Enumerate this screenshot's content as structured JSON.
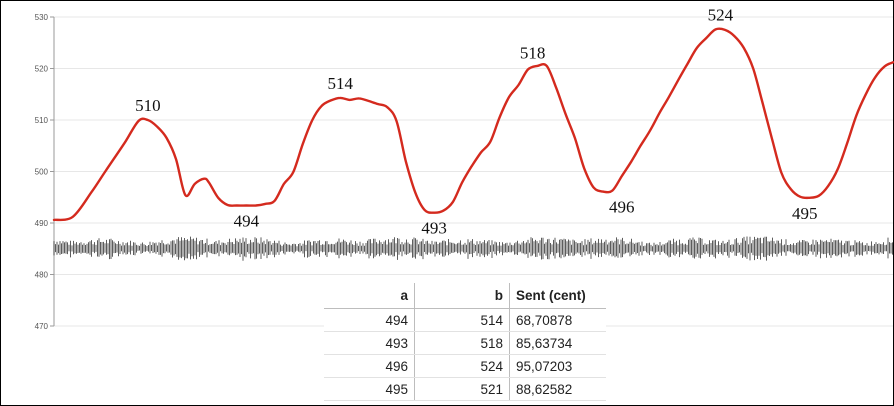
{
  "chart_data": {
    "type": "line",
    "title": "",
    "xlabel": "",
    "ylabel": "",
    "ylim": [
      470,
      530
    ],
    "yticks": [
      530,
      520,
      510,
      500,
      490,
      480,
      470
    ],
    "grid": true,
    "series": [
      {
        "color": "#d42a1e",
        "x": [
          0,
          20,
          40,
          55,
          75,
          90,
          100,
          110,
          120,
          130,
          140,
          150,
          160,
          165,
          175,
          185,
          195,
          205,
          215,
          225,
          235,
          245,
          255,
          265,
          275,
          285,
          295,
          305,
          315,
          325,
          335,
          345,
          355,
          365,
          375,
          385,
          395,
          405,
          415,
          425,
          435,
          445,
          455,
          465,
          475,
          485,
          495,
          505,
          515,
          525,
          535,
          545,
          555,
          565,
          575,
          585,
          595,
          605,
          615,
          625,
          635,
          645,
          655,
          665,
          675,
          685,
          695,
          705,
          715,
          725,
          735,
          745,
          755,
          765,
          775,
          785,
          795,
          805,
          815,
          825,
          835,
          845,
          855,
          865,
          875,
          885,
          894
        ],
        "y": [
          490.6,
          491.2,
          496.0,
          500.1,
          505.5,
          509.8,
          510.0,
          508.7,
          506.5,
          502.4,
          495.4,
          497.6,
          498.6,
          497.9,
          494.9,
          493.5,
          493.4,
          493.4,
          493.4,
          493.7,
          494.3,
          497.6,
          499.9,
          505.3,
          509.9,
          512.7,
          513.8,
          514.3,
          513.9,
          514.2,
          513.7,
          513.1,
          512.5,
          509.8,
          501.9,
          495.9,
          492.5,
          492.0,
          492.4,
          494.1,
          497.9,
          501.0,
          503.7,
          505.8,
          510.6,
          514.5,
          516.8,
          519.8,
          520.5,
          520.5,
          516.3,
          511.2,
          506.5,
          500.6,
          496.9,
          496.1,
          496.3,
          499.1,
          501.9,
          505.0,
          507.9,
          511.3,
          514.4,
          517.7,
          520.9,
          524.0,
          525.9,
          527.6,
          527.5,
          526.3,
          524.0,
          520.0,
          513.3,
          506.4,
          499.8,
          496.6,
          495.1,
          494.9,
          495.3,
          497.2,
          500.4,
          505.4,
          510.9,
          515.0,
          518.3,
          520.4,
          521.2
        ]
      }
    ],
    "annotations": [
      {
        "text": "510",
        "x": 100,
        "y": 510.0,
        "pos": "above"
      },
      {
        "text": "494",
        "x": 205,
        "y": 493.4,
        "pos": "below"
      },
      {
        "text": "514",
        "x": 305,
        "y": 514.3,
        "pos": "above"
      },
      {
        "text": "493",
        "x": 405,
        "y": 492.0,
        "pos": "below"
      },
      {
        "text": "518",
        "x": 510,
        "y": 520.2,
        "pos": "above"
      },
      {
        "text": "496",
        "x": 605,
        "y": 496.1,
        "pos": "below"
      },
      {
        "text": "524",
        "x": 710,
        "y": 527.6,
        "pos": "above"
      },
      {
        "text": "495",
        "x": 800,
        "y": 494.9,
        "pos": "below"
      }
    ],
    "waveform": {
      "color": "#111111",
      "center": 485,
      "amplitude": 2.0
    }
  },
  "table": {
    "columns": [
      "a",
      "b",
      "Sent (cent)"
    ],
    "rows": [
      [
        "494",
        "514",
        "68,70878"
      ],
      [
        "493",
        "518",
        "85,63734"
      ],
      [
        "496",
        "524",
        "95,07203"
      ],
      [
        "495",
        "521",
        "88,62582"
      ]
    ]
  }
}
